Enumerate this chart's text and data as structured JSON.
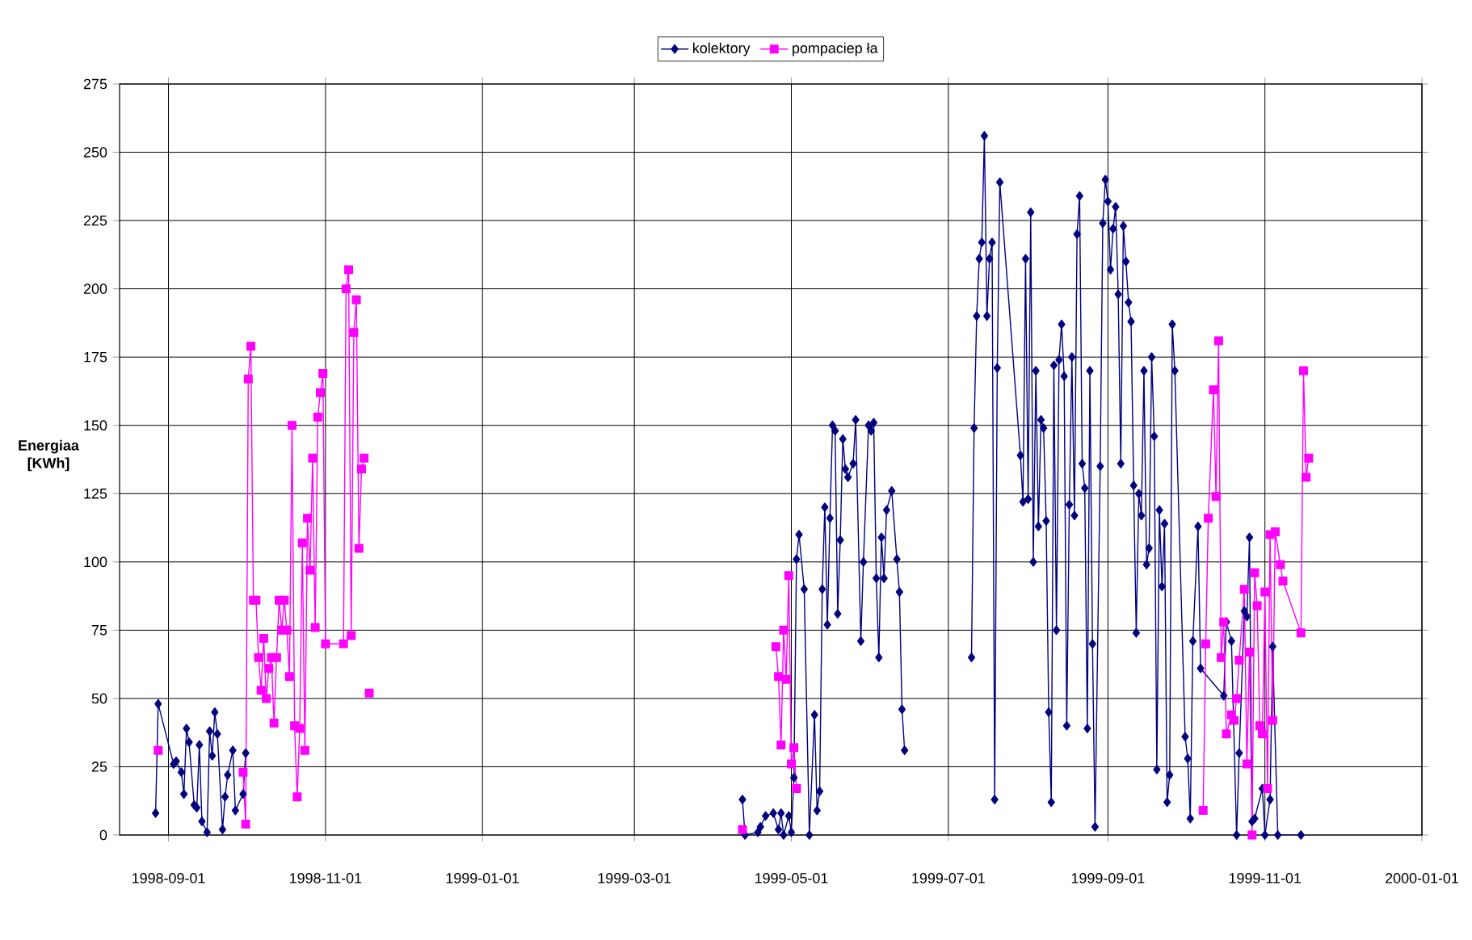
{
  "chart_data": {
    "type": "line",
    "ylabel": "Energiaa [KWh]",
    "xlim": [
      "1998-08-13",
      "2000-01-01"
    ],
    "ylim": [
      0,
      275
    ],
    "yticks": [
      0,
      25,
      50,
      75,
      100,
      125,
      150,
      175,
      200,
      225,
      250,
      275
    ],
    "xticks": [
      "1998-09-01",
      "1998-11-01",
      "1999-01-01",
      "1999-03-01",
      "1999-05-01",
      "1999-07-01",
      "1999-09-01",
      "1999-11-01",
      "2000-01-01"
    ],
    "grid": true,
    "legend": "top",
    "line_style": "solid",
    "series": [
      {
        "name": "kolektory",
        "color": "#000080",
        "marker": "diamond",
        "x": [
          "1998-08-27",
          "1998-08-28",
          "1998-09-03",
          "1998-09-04",
          "1998-09-06",
          "1998-09-07",
          "1998-09-08",
          "1998-09-09",
          "1998-09-11",
          "1998-09-12",
          "1998-09-13",
          "1998-09-14",
          "1998-09-16",
          "1998-09-17",
          "1998-09-18",
          "1998-09-19",
          "1998-09-20",
          "1998-09-22",
          "1998-09-23",
          "1998-09-24",
          "1998-09-26",
          "1998-09-27",
          "1998-09-30",
          "1998-10-01",
          "1999-01-01",
          "1999-04-12",
          "1999-04-13",
          "1999-04-18",
          "1999-04-19",
          "1999-04-21",
          "1999-04-24",
          "1999-04-26",
          "1999-04-27",
          "1999-04-28",
          "1999-04-30",
          "1999-05-01",
          "1999-05-02",
          "1999-05-03",
          "1999-05-04",
          "1999-05-06",
          "1999-05-08",
          "1999-05-10",
          "1999-05-11",
          "1999-05-12",
          "1999-05-13",
          "1999-05-14",
          "1999-05-15",
          "1999-05-16",
          "1999-05-17",
          "1999-05-18",
          "1999-05-19",
          "1999-05-20",
          "1999-05-21",
          "1999-05-22",
          "1999-05-23",
          "1999-05-25",
          "1999-05-26",
          "1999-05-28",
          "1999-05-29",
          "1999-05-31",
          "1999-06-01",
          "1999-06-02",
          "1999-06-03",
          "1999-06-04",
          "1999-06-05",
          "1999-06-06",
          "1999-06-07",
          "1999-06-09",
          "1999-06-11",
          "1999-06-12",
          "1999-06-13",
          "1999-06-14",
          "1999-06-25",
          "1999-07-10",
          "1999-07-11",
          "1999-07-12",
          "1999-07-13",
          "1999-07-14",
          "1999-07-15",
          "1999-07-16",
          "1999-07-17",
          "1999-07-18",
          "1999-07-19",
          "1999-07-20",
          "1999-07-21",
          "1999-07-29",
          "1999-07-30",
          "1999-07-31",
          "1999-08-01",
          "1999-08-02",
          "1999-08-03",
          "1999-08-04",
          "1999-08-05",
          "1999-08-06",
          "1999-08-07",
          "1999-08-08",
          "1999-08-09",
          "1999-08-10",
          "1999-08-11",
          "1999-08-12",
          "1999-08-13",
          "1999-08-14",
          "1999-08-15",
          "1999-08-16",
          "1999-08-17",
          "1999-08-18",
          "1999-08-19",
          "1999-08-20",
          "1999-08-21",
          "1999-08-22",
          "1999-08-23",
          "1999-08-24",
          "1999-08-25",
          "1999-08-26",
          "1999-08-27",
          "1999-08-29",
          "1999-08-30",
          "1999-08-31",
          "1999-09-01",
          "1999-09-02",
          "1999-09-03",
          "1999-09-04",
          "1999-09-05",
          "1999-09-06",
          "1999-09-07",
          "1999-09-08",
          "1999-09-09",
          "1999-09-10",
          "1999-09-11",
          "1999-09-12",
          "1999-09-13",
          "1999-09-14",
          "1999-09-15",
          "1999-09-16",
          "1999-09-17",
          "1999-09-18",
          "1999-09-19",
          "1999-09-20",
          "1999-09-21",
          "1999-09-22",
          "1999-09-23",
          "1999-09-24",
          "1999-09-25",
          "1999-09-26",
          "1999-09-27",
          "1999-10-01",
          "1999-10-02",
          "1999-10-03",
          "1999-10-04",
          "1999-10-06",
          "1999-10-07",
          "1999-10-16",
          "1999-10-17",
          "1999-10-19",
          "1999-10-21",
          "1999-10-22",
          "1999-10-24",
          "1999-10-25",
          "1999-10-26",
          "1999-10-27",
          "1999-10-28",
          "1999-10-31",
          "1999-11-01",
          "1999-11-03",
          "1999-11-04",
          "1999-11-06",
          "1999-11-15"
        ],
        "values": [
          8,
          48,
          26,
          27,
          23,
          15,
          39,
          34,
          11,
          10,
          33,
          5,
          1,
          38,
          29,
          45,
          37,
          2,
          14,
          22,
          31,
          9,
          15,
          30,
          null,
          13,
          0,
          1,
          3,
          7,
          8,
          2,
          8,
          0,
          7,
          1,
          21,
          101,
          110,
          90,
          0,
          44,
          9,
          16,
          90,
          120,
          77,
          116,
          150,
          148,
          81,
          108,
          145,
          134,
          131,
          136,
          152,
          71,
          100,
          150,
          148,
          151,
          94,
          65,
          109,
          94,
          119,
          126,
          101,
          89,
          46,
          31,
          null,
          65,
          149,
          190,
          211,
          217,
          256,
          190,
          211,
          217,
          13,
          171,
          239,
          139,
          122,
          211,
          123,
          228,
          100,
          170,
          113,
          152,
          149,
          115,
          45,
          12,
          172,
          75,
          174,
          187,
          168,
          40,
          121,
          175,
          117,
          220,
          234,
          136,
          127,
          39,
          170,
          70,
          3,
          135,
          224,
          240,
          232,
          207,
          222,
          230,
          198,
          136,
          223,
          210,
          195,
          188,
          128,
          74,
          125,
          117,
          170,
          99,
          105,
          175,
          146,
          24,
          119,
          91,
          114,
          12,
          22,
          187,
          170,
          36,
          28,
          6,
          71,
          113,
          61,
          51,
          78,
          71,
          0,
          30,
          82,
          80,
          109,
          5,
          6,
          17,
          0,
          13,
          69,
          0,
          0
        ]
      },
      {
        "name": "pompaciep ła",
        "color": "#ff00ff",
        "marker": "square",
        "x": [
          "1998-08-28",
          "1998-09-15",
          "1998-09-30",
          "1998-10-01",
          "1998-10-02",
          "1998-10-03",
          "1998-10-04",
          "1998-10-05",
          "1998-10-06",
          "1998-10-07",
          "1998-10-08",
          "1998-10-09",
          "1998-10-10",
          "1998-10-11",
          "1998-10-12",
          "1998-10-13",
          "1998-10-14",
          "1998-10-15",
          "1998-10-16",
          "1998-10-17",
          "1998-10-18",
          "1998-10-19",
          "1998-10-20",
          "1998-10-21",
          "1998-10-22",
          "1998-10-23",
          "1998-10-24",
          "1998-10-25",
          "1998-10-26",
          "1998-10-27",
          "1998-10-28",
          "1998-10-29",
          "1998-10-30",
          "1998-10-31",
          "1998-11-01",
          "1998-11-08",
          "1998-11-09",
          "1998-11-10",
          "1998-11-11",
          "1998-11-12",
          "1998-11-13",
          "1998-11-14",
          "1998-11-15",
          "1998-11-16",
          "1998-11-17",
          "1998-11-18",
          "1999-01-01",
          "1999-04-12",
          "1999-04-20",
          "1999-04-25",
          "1999-04-26",
          "1999-04-27",
          "1999-04-28",
          "1999-04-29",
          "1999-04-30",
          "1999-05-01",
          "1999-05-02",
          "1999-05-03",
          "1999-07-01",
          "1999-10-08",
          "1999-10-09",
          "1999-10-10",
          "1999-10-12",
          "1999-10-13",
          "1999-10-14",
          "1999-10-15",
          "1999-10-16",
          "1999-10-17",
          "1999-10-19",
          "1999-10-20",
          "1999-10-21",
          "1999-10-22",
          "1999-10-24",
          "1999-10-25",
          "1999-10-26",
          "1999-10-27",
          "1999-10-28",
          "1999-10-29",
          "1999-10-30",
          "1999-10-31",
          "1999-11-01",
          "1999-11-02",
          "1999-11-03",
          "1999-11-04",
          "1999-11-05",
          "1999-11-07",
          "1999-11-08",
          "1999-11-15",
          "1999-11-16",
          "1999-11-17",
          "1999-11-18"
        ],
        "values": [
          31,
          null,
          23,
          4,
          167,
          179,
          86,
          86,
          65,
          53,
          72,
          50,
          61,
          65,
          41,
          65,
          86,
          75,
          86,
          75,
          58,
          150,
          40,
          14,
          39,
          107,
          31,
          116,
          97,
          138,
          76,
          153,
          162,
          169,
          70,
          70,
          200,
          207,
          73,
          184,
          196,
          105,
          134,
          138,
          null,
          52,
          null,
          2,
          null,
          69,
          58,
          33,
          75,
          57,
          95,
          26,
          32,
          17,
          null,
          9,
          70,
          116,
          163,
          124,
          181,
          65,
          78,
          37,
          44,
          42,
          50,
          64,
          90,
          26,
          67,
          0,
          96,
          84,
          40,
          37,
          89,
          17,
          110,
          42,
          111,
          99,
          93,
          74,
          170,
          131,
          138
        ]
      }
    ]
  }
}
